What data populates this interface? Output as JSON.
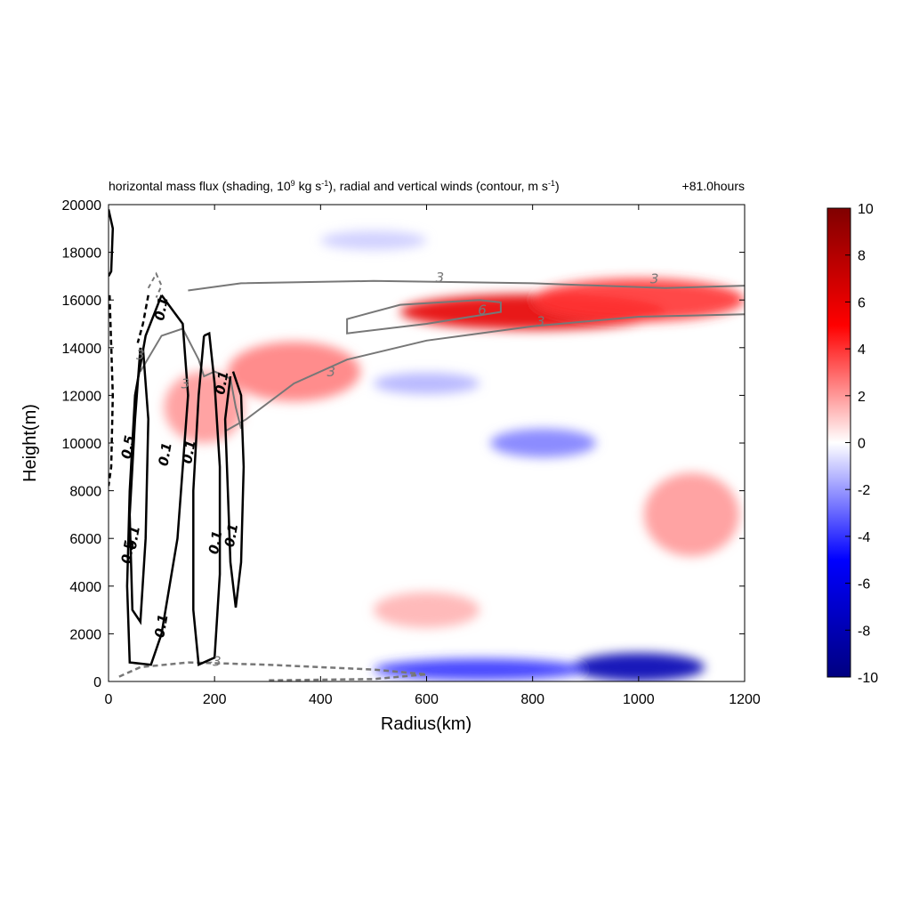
{
  "chart_data": {
    "type": "heatmap",
    "title": "horizontal mass flux (shading, 10",
    "title_sup1": "9",
    "title_mid": " kg s",
    "title_sup2": "-1",
    "title_mid2": "), radial and vertical winds (contour, m s",
    "title_sup3": "-1",
    "title_end": ")",
    "time_label": "+81.0hours",
    "xlabel": "Radius(km)",
    "ylabel": "Height(m)",
    "xlim": [
      0,
      1200
    ],
    "ylim": [
      0,
      20000
    ],
    "x_ticks": [
      "0",
      "200",
      "400",
      "600",
      "800",
      "1000",
      "1200"
    ],
    "y_ticks": [
      "0",
      "2000",
      "4000",
      "6000",
      "8000",
      "10000",
      "12000",
      "14000",
      "16000",
      "18000",
      "20000"
    ],
    "colorbar": {
      "min": -10,
      "max": 10,
      "ticks": [
        "-10",
        "-8",
        "-6",
        "-4",
        "-2",
        "0",
        "2",
        "4",
        "6",
        "8",
        "10"
      ],
      "colors": [
        "#000080",
        "#0000ff",
        "#ffffff",
        "#ff0000",
        "#800000"
      ]
    },
    "shading_features": [
      {
        "r_center": 800,
        "z_center": 15500,
        "r_width": 500,
        "z_width": 1500,
        "value": 6
      },
      {
        "r_center": 1000,
        "z_center": 16000,
        "r_width": 400,
        "z_width": 1800,
        "value": 4
      },
      {
        "r_center": 350,
        "z_center": 13000,
        "r_width": 250,
        "z_width": 2500,
        "value": 2.5
      },
      {
        "r_center": 180,
        "z_center": 11500,
        "r_width": 150,
        "z_width": 3000,
        "value": 2
      },
      {
        "r_center": 820,
        "z_center": 10000,
        "r_width": 200,
        "z_width": 1200,
        "value": -2.5
      },
      {
        "r_center": 600,
        "z_center": 12500,
        "r_width": 200,
        "z_width": 900,
        "value": -1.5
      },
      {
        "r_center": 1000,
        "z_center": 600,
        "r_width": 250,
        "z_width": 1200,
        "value": -8
      },
      {
        "r_center": 700,
        "z_center": 500,
        "r_width": 400,
        "z_width": 900,
        "value": -4
      },
      {
        "r_center": 1100,
        "z_center": 7000,
        "r_width": 180,
        "z_width": 3500,
        "value": 2
      },
      {
        "r_center": 600,
        "z_center": 3000,
        "r_width": 200,
        "z_width": 1500,
        "value": 1.5
      },
      {
        "r_center": 500,
        "z_center": 18500,
        "r_width": 200,
        "z_width": 800,
        "value": -1
      }
    ],
    "contours": [
      {
        "level": "3",
        "style": "solid",
        "color": "#777777"
      },
      {
        "level": "6",
        "style": "solid",
        "color": "#777777"
      },
      {
        "level": "-3",
        "style": "dashed",
        "color": "#777777"
      },
      {
        "level": "0.1",
        "style": "solid",
        "color": "#000000"
      },
      {
        "level": "0.5",
        "style": "solid",
        "color": "#000000"
      }
    ],
    "contour_labels": [
      {
        "text": "3",
        "r": 625,
        "z": 16750
      },
      {
        "text": "3",
        "r": 1030,
        "z": 16700
      },
      {
        "text": "6",
        "r": 705,
        "z": 15400
      },
      {
        "text": "3",
        "r": 815,
        "z": 14900
      },
      {
        "text": "3",
        "r": 420,
        "z": 12800
      },
      {
        "text": "3",
        "r": 60,
        "z": 13500
      },
      {
        "text": "3",
        "r": 145,
        "z": 12300
      },
      {
        "text": "-3",
        "r": 200,
        "z": 650
      },
      {
        "text": "0.1",
        "r": 108,
        "z": 15600
      },
      {
        "text": "0.1",
        "r": 115,
        "z": 9500
      },
      {
        "text": "0.1",
        "r": 160,
        "z": 9600
      },
      {
        "text": "0.1",
        "r": 222,
        "z": 12500
      },
      {
        "text": "0.1",
        "r": 210,
        "z": 5800
      },
      {
        "text": "0.1",
        "r": 240,
        "z": 6100
      },
      {
        "text": "0.1",
        "r": 108,
        "z": 2300
      },
      {
        "text": "0.5",
        "r": 45,
        "z": 9800
      },
      {
        "text": "0.5",
        "r": 45,
        "z": 5400
      },
      {
        "text": "0.1",
        "r": 55,
        "z": 6000
      }
    ]
  }
}
